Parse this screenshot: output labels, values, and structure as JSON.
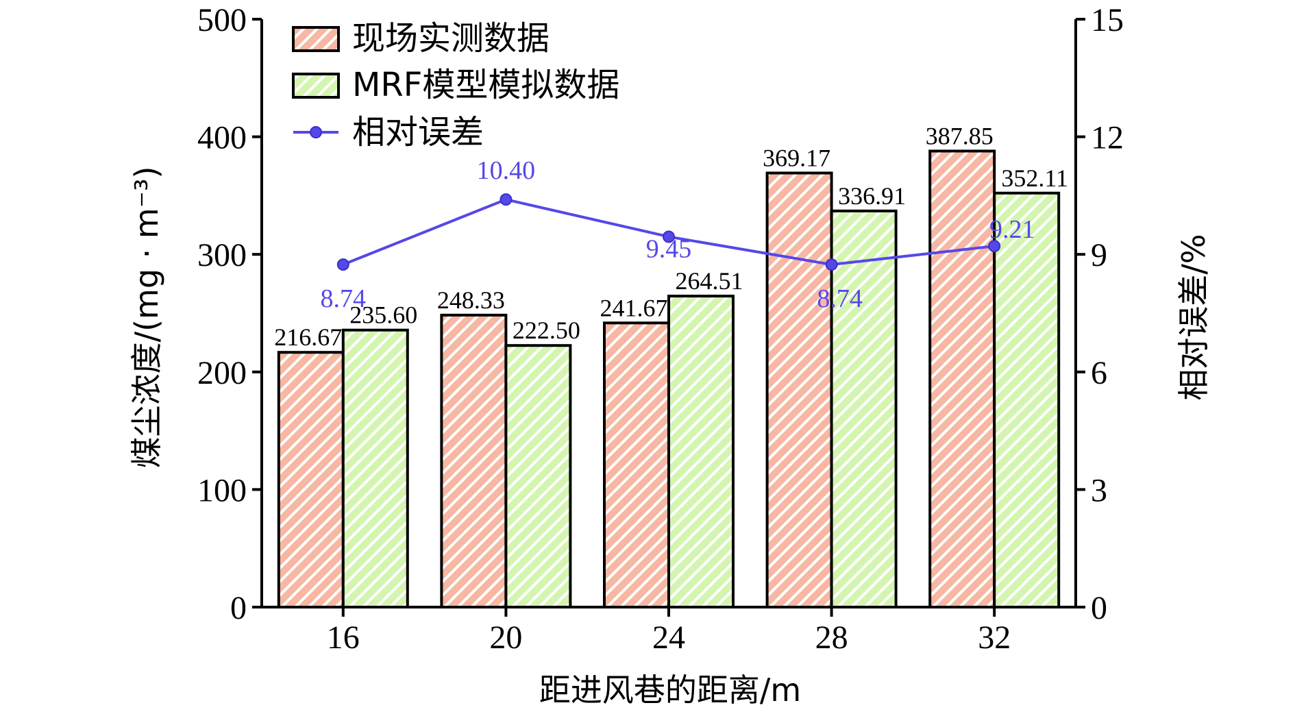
{
  "chart_data": {
    "type": "bar",
    "xlabel": "距进风巷的距离/m",
    "ylabel": "煤尘浓度/(mg · m⁻³)",
    "y2label": "相对误差/%",
    "categories": [
      "16",
      "20",
      "24",
      "28",
      "32"
    ],
    "ylim": [
      0,
      500
    ],
    "y2lim": [
      0,
      15
    ],
    "yticks": [
      0,
      100,
      200,
      300,
      400,
      500
    ],
    "y2ticks": [
      0,
      3,
      6,
      9,
      12,
      15
    ],
    "series": [
      {
        "name": "现场实测数据",
        "kind": "bar",
        "values": [
          216.67,
          248.33,
          241.67,
          369.17,
          387.85
        ],
        "labels": [
          "216.67",
          "248.33",
          "241.67",
          "369.17",
          "387.85"
        ],
        "color": "#f7b7a3",
        "stripe": "#ffffff"
      },
      {
        "name": "MRF模型模拟数据",
        "kind": "bar",
        "values": [
          235.6,
          222.5,
          264.51,
          336.91,
          352.11
        ],
        "labels": [
          "235.60",
          "222.50",
          "264.51",
          "336.91",
          "352.11"
        ],
        "color": "#d4f5b0",
        "stripe": "#ffffff"
      },
      {
        "name": "相对误差",
        "kind": "line",
        "axis": "right",
        "values": [
          8.74,
          10.4,
          9.45,
          8.74,
          9.21
        ],
        "labels": [
          "8.74",
          "10.40",
          "9.45",
          "8.74",
          "9.21"
        ],
        "color": "#5548e8"
      }
    ],
    "legend_position": "top-left",
    "grid": false
  }
}
